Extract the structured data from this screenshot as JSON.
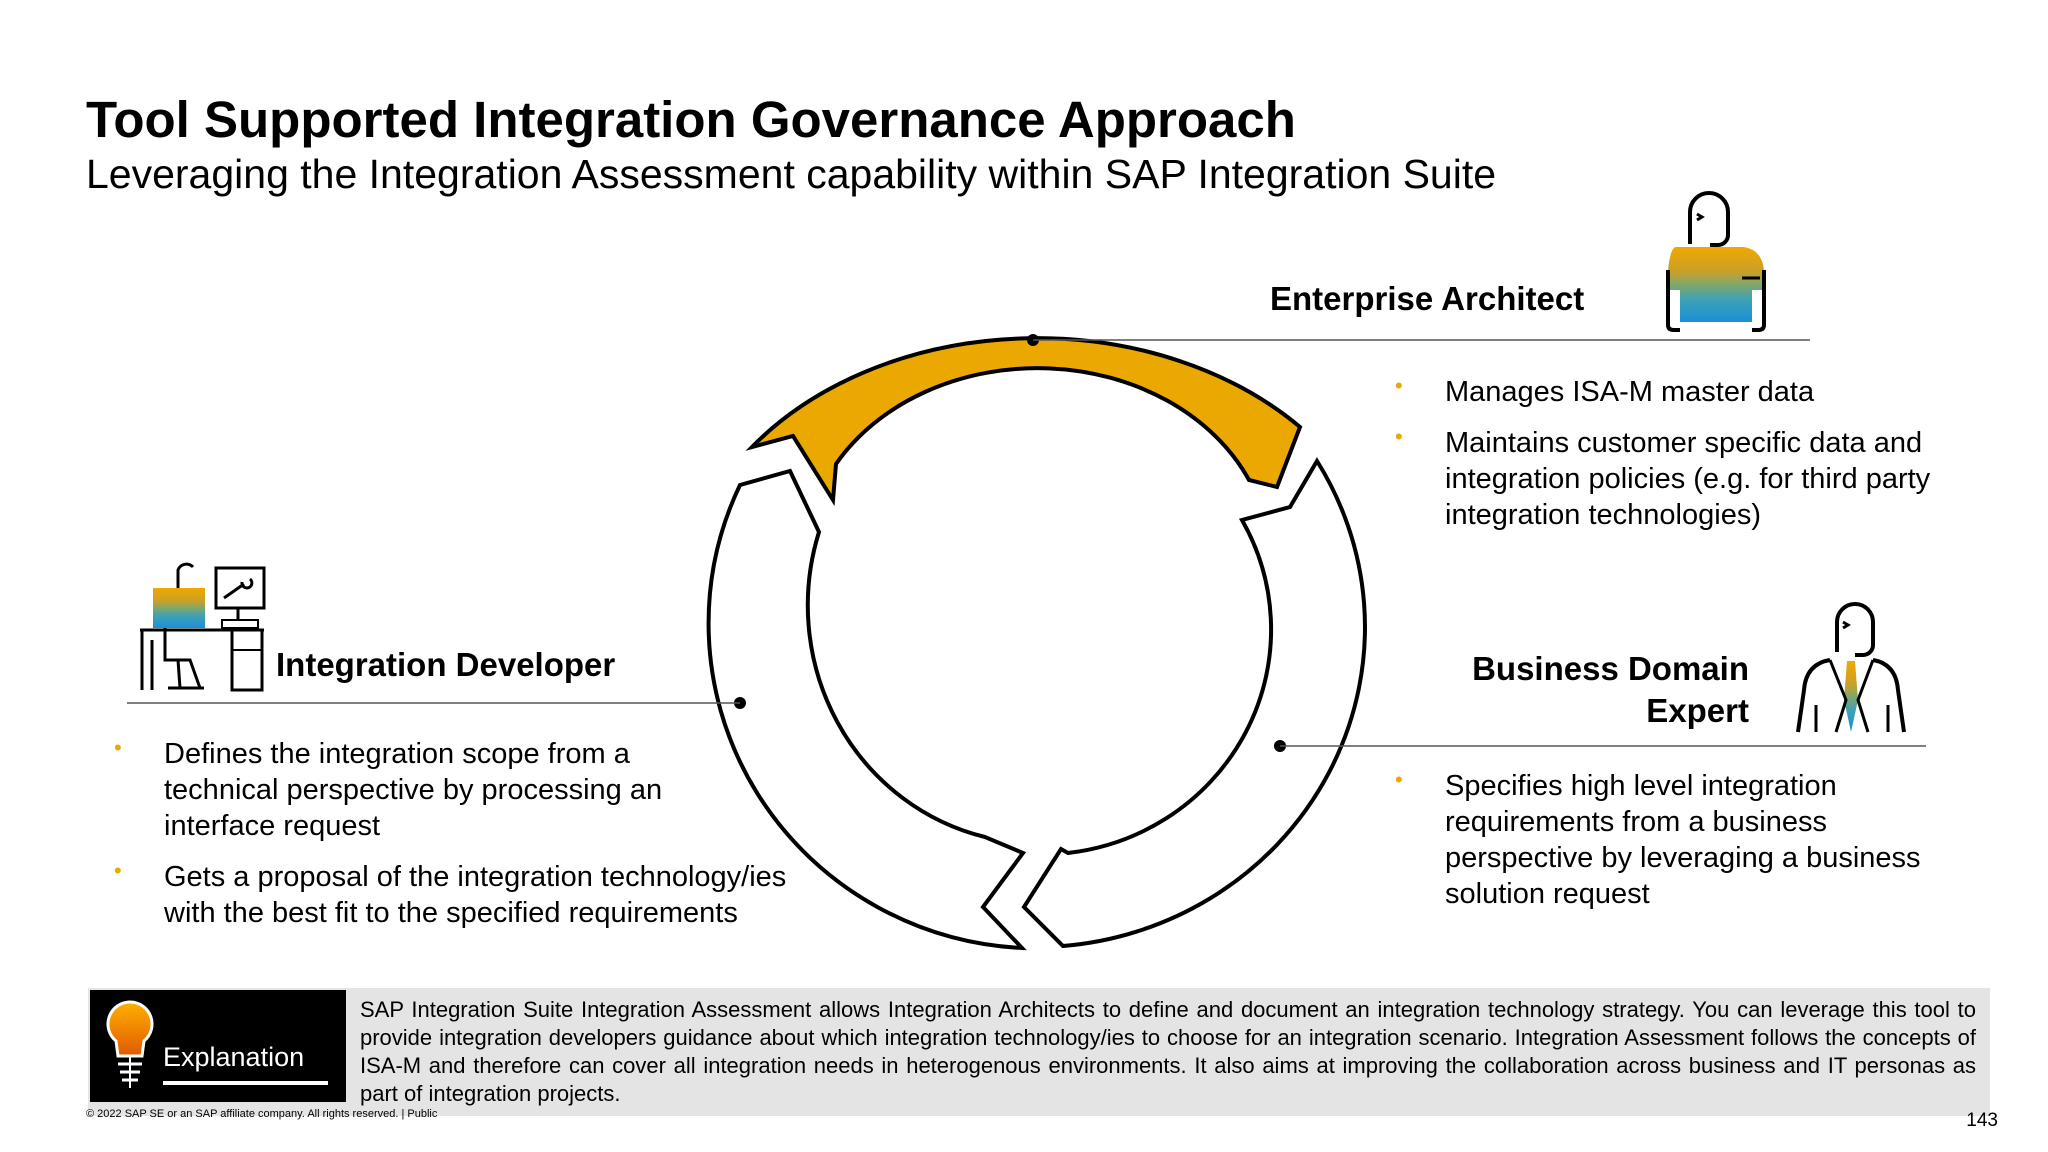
{
  "title": "Tool Supported Integration Governance Approach",
  "subtitle": "Leveraging the Integration Assessment capability within SAP Integration Suite",
  "colors": {
    "accent_gold": "#eaa800",
    "bullet": "#e8a900",
    "explanation_bg": "#e4e4e4"
  },
  "roles": {
    "enterprise_architect": {
      "label": "Enterprise Architect",
      "icon": "architect-person-icon",
      "bullets": [
        "Manages ISA-M master data",
        "Maintains customer specific data and integration policies (e.g. for third party integration technologies)"
      ]
    },
    "integration_developer": {
      "label": "Integration Developer",
      "icon": "developer-at-desk-icon",
      "bullets": [
        "Defines the integration scope from a technical perspective by processing an interface request",
        "Gets a proposal of the integration technology/ies with the best fit to the specified requirements"
      ]
    },
    "business_domain_expert": {
      "label_line1": "Business Domain",
      "label_line2": "Expert",
      "icon": "business-person-icon",
      "bullets": [
        "Specifies high level integration requirements from a business perspective by leveraging a business solution request"
      ]
    }
  },
  "explanation": {
    "label": "Explanation",
    "icon": "lightbulb-icon",
    "text": "SAP Integration Suite Integration Assessment allows Integration Architects to define and document an integration technology strategy. You can leverage this tool to provide integration developers guidance about which integration technology/ies to choose for an integration scenario. Integration Assessment follows the concepts of ISA-M and therefore can cover all integration needs in heterogenous environments. It also aims at improving the collaboration across business and IT personas as part of integration projects."
  },
  "footer": "© 2022 SAP SE or an SAP affiliate company. All rights reserved. | Public",
  "page_number": "143"
}
